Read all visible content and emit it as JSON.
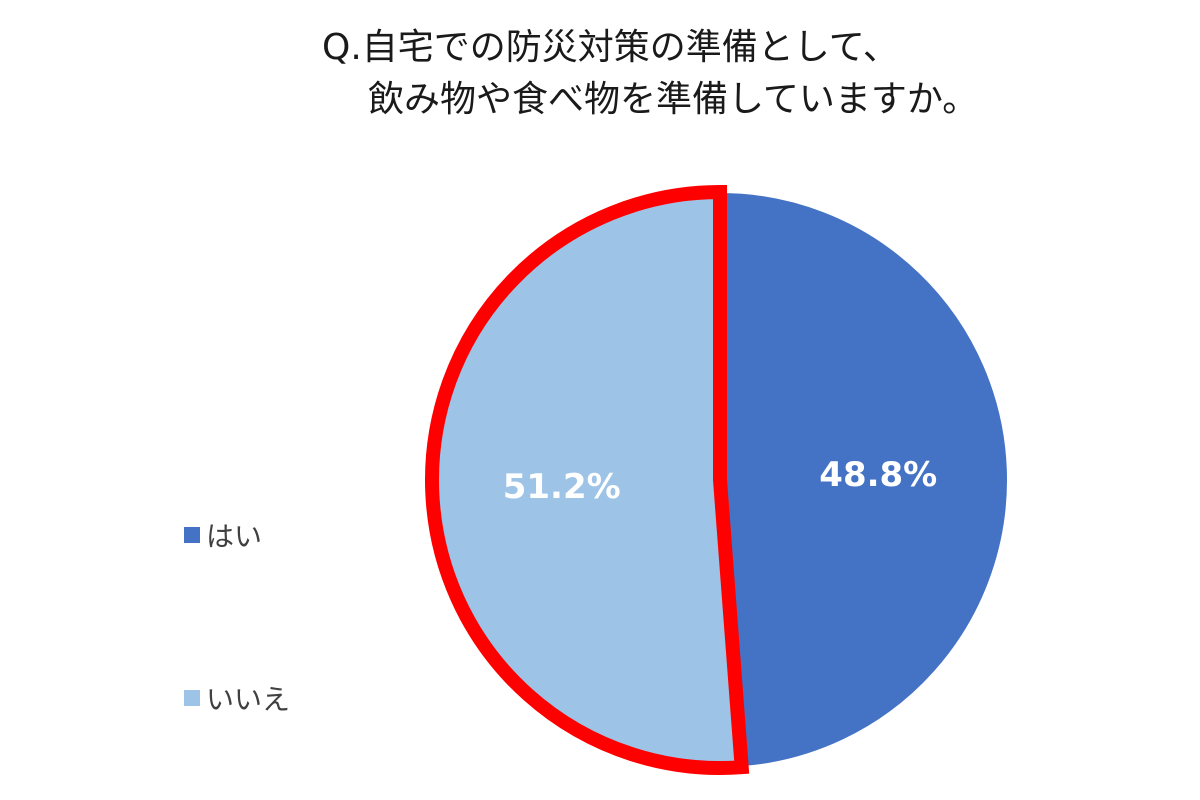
{
  "chart_data": {
    "type": "pie",
    "title_lines": [
      "Q.自宅での防災対策の準備として、",
      "飲み物や食べ物を準備していますか。"
    ],
    "slices": [
      {
        "label": "はい",
        "value": 48.8,
        "value_label": "48.8%",
        "color": "#4472C4"
      },
      {
        "label": "いいえ",
        "value": 51.2,
        "value_label": "51.2%",
        "color": "#9DC3E6",
        "highlighted": true
      }
    ],
    "highlight_color": "#FF0000",
    "legend_position": "left"
  }
}
